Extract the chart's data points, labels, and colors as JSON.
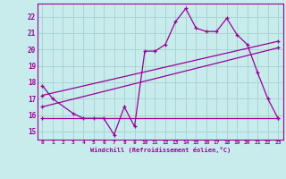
{
  "bg_color": "#c8ecec",
  "grid_color": "#aad4d4",
  "line_color": "#990099",
  "xlabel": "Windchill (Refroidissement éolien,°C)",
  "ylabel_ticks": [
    15,
    16,
    17,
    18,
    19,
    20,
    21,
    22
  ],
  "xlim": [
    -0.5,
    23.5
  ],
  "ylim": [
    14.5,
    22.8
  ],
  "series1_x": [
    0,
    1,
    3,
    4,
    5,
    6,
    7,
    8,
    9,
    10,
    11,
    12,
    13,
    14,
    15,
    16,
    17,
    18,
    19,
    20,
    21,
    22,
    23
  ],
  "series1_y": [
    17.8,
    17.0,
    16.1,
    15.8,
    15.8,
    15.8,
    14.8,
    16.5,
    15.3,
    19.9,
    19.9,
    20.3,
    21.7,
    22.5,
    21.3,
    21.1,
    21.1,
    21.9,
    20.9,
    20.3,
    18.6,
    17.0,
    15.8
  ],
  "series2_x": [
    0,
    23
  ],
  "series2_y": [
    15.8,
    15.8
  ],
  "series3_x": [
    0,
    23
  ],
  "series3_y": [
    16.5,
    20.1
  ],
  "series4_x": [
    0,
    23
  ],
  "series4_y": [
    17.2,
    20.5
  ]
}
